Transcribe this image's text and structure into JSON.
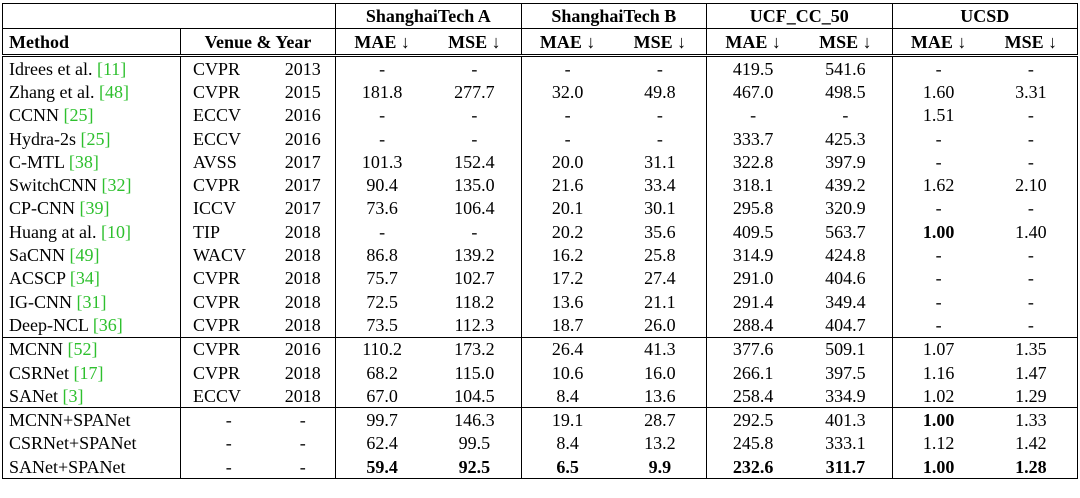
{
  "table": {
    "groups": [
      "ShanghaiTech A",
      "ShanghaiTech B",
      "UCF_CC_50",
      "UCSD"
    ],
    "columns": {
      "method": "Method",
      "venue": "Venue & Year",
      "metrics": [
        "MAE ↓",
        "MSE ↓"
      ]
    },
    "sections": [
      [
        {
          "method": "Idrees et al.",
          "cite": "[11]",
          "venue": "CVPR",
          "year": "2013",
          "cells": [
            "-",
            "-",
            "-",
            "-",
            "419.5",
            "541.6",
            "-",
            "-"
          ],
          "bold": []
        },
        {
          "method": "Zhang et al.",
          "cite": "[48]",
          "venue": "CVPR",
          "year": "2015",
          "cells": [
            "181.8",
            "277.7",
            "32.0",
            "49.8",
            "467.0",
            "498.5",
            "1.60",
            "3.31"
          ],
          "bold": []
        },
        {
          "method": "CCNN",
          "cite": "[25]",
          "venue": "ECCV",
          "year": "2016",
          "cells": [
            "-",
            "-",
            "-",
            "-",
            "-",
            "-",
            "1.51",
            "-"
          ],
          "bold": []
        },
        {
          "method": "Hydra-2s",
          "cite": "[25]",
          "venue": "ECCV",
          "year": "2016",
          "cells": [
            "-",
            "-",
            "-",
            "-",
            "333.7",
            "425.3",
            "-",
            "-"
          ],
          "bold": []
        },
        {
          "method": "C-MTL",
          "cite": "[38]",
          "venue": "AVSS",
          "year": "2017",
          "cells": [
            "101.3",
            "152.4",
            "20.0",
            "31.1",
            "322.8",
            "397.9",
            "-",
            "-"
          ],
          "bold": []
        },
        {
          "method": "SwitchCNN",
          "cite": "[32]",
          "venue": "CVPR",
          "year": "2017",
          "cells": [
            "90.4",
            "135.0",
            "21.6",
            "33.4",
            "318.1",
            "439.2",
            "1.62",
            "2.10"
          ],
          "bold": []
        },
        {
          "method": "CP-CNN",
          "cite": "[39]",
          "venue": "ICCV",
          "year": "2017",
          "cells": [
            "73.6",
            "106.4",
            "20.1",
            "30.1",
            "295.8",
            "320.9",
            "-",
            "-"
          ],
          "bold": []
        },
        {
          "method": "Huang at al.",
          "cite": "[10]",
          "venue": "TIP",
          "year": "2018",
          "cells": [
            "-",
            "-",
            "20.2",
            "35.6",
            "409.5",
            "563.7",
            "1.00",
            "1.40"
          ],
          "bold": [
            6
          ]
        },
        {
          "method": "SaCNN",
          "cite": "[49]",
          "venue": "WACV",
          "year": "2018",
          "cells": [
            "86.8",
            "139.2",
            "16.2",
            "25.8",
            "314.9",
            "424.8",
            "-",
            "-"
          ],
          "bold": []
        },
        {
          "method": "ACSCP",
          "cite": "[34]",
          "venue": "CVPR",
          "year": "2018",
          "cells": [
            "75.7",
            "102.7",
            "17.2",
            "27.4",
            "291.0",
            "404.6",
            "-",
            "-"
          ],
          "bold": []
        },
        {
          "method": "IG-CNN",
          "cite": "[31]",
          "venue": "CVPR",
          "year": "2018",
          "cells": [
            "72.5",
            "118.2",
            "13.6",
            "21.1",
            "291.4",
            "349.4",
            "-",
            "-"
          ],
          "bold": []
        },
        {
          "method": "Deep-NCL",
          "cite": "[36]",
          "venue": "CVPR",
          "year": "2018",
          "cells": [
            "73.5",
            "112.3",
            "18.7",
            "26.0",
            "288.4",
            "404.7",
            "-",
            "-"
          ],
          "bold": []
        }
      ],
      [
        {
          "method": "MCNN",
          "cite": "[52]",
          "venue": "CVPR",
          "year": "2016",
          "cells": [
            "110.2",
            "173.2",
            "26.4",
            "41.3",
            "377.6",
            "509.1",
            "1.07",
            "1.35"
          ],
          "bold": []
        },
        {
          "method": "CSRNet",
          "cite": "[17]",
          "venue": "CVPR",
          "year": "2018",
          "cells": [
            "68.2",
            "115.0",
            "10.6",
            "16.0",
            "266.1",
            "397.5",
            "1.16",
            "1.47"
          ],
          "bold": []
        },
        {
          "method": "SANet",
          "cite": "[3]",
          "venue": "ECCV",
          "year": "2018",
          "cells": [
            "67.0",
            "104.5",
            "8.4",
            "13.6",
            "258.4",
            "334.9",
            "1.02",
            "1.29"
          ],
          "bold": []
        }
      ],
      [
        {
          "method": "MCNN+SPANet",
          "venue": "-",
          "year": "-",
          "cells": [
            "99.7",
            "146.3",
            "19.1",
            "28.7",
            "292.5",
            "401.3",
            "1.00",
            "1.33"
          ],
          "bold": [
            6
          ]
        },
        {
          "method": "CSRNet+SPANet",
          "venue": "-",
          "year": "-",
          "cells": [
            "62.4",
            "99.5",
            "8.4",
            "13.2",
            "245.8",
            "333.1",
            "1.12",
            "1.42"
          ],
          "bold": []
        },
        {
          "method": "SANet+SPANet",
          "venue": "-",
          "year": "-",
          "cells": [
            "59.4",
            "92.5",
            "6.5",
            "9.9",
            "232.6",
            "311.7",
            "1.00",
            "1.28"
          ],
          "bold": [
            0,
            1,
            2,
            3,
            4,
            5,
            6,
            7
          ]
        }
      ]
    ]
  }
}
